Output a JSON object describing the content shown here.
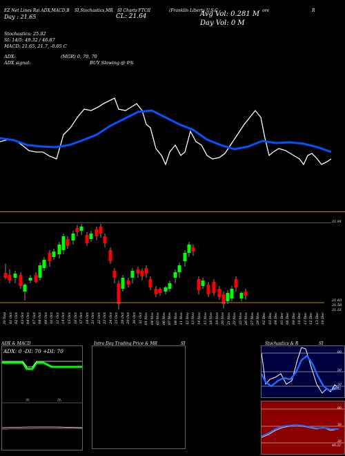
{
  "header": {
    "items": [
      "EZ Net Lines Rsi ADX,MACD,B",
      "SI,Stochastics,MR",
      "SI Charts FTCII",
      "(Franklin Liberty U.S.C",
      "ore",
      "R"
    ],
    "day_label": "Day : 21.65",
    "cl_label": "CL: 21.64",
    "avg_vol": "Avg Vol: 0.281 M",
    "day_vol": "Day Vol: 0   M"
  },
  "stats": {
    "stochastics": "Stochastics: 25.92",
    "si": "SI: 14/5: 49.32 / 46.87",
    "macd": "MACD: 21.65, 21.7, -0.05 C",
    "adx": "ADX:",
    "adx_signal": "ADX  signal:",
    "mgr": "(MGR) 0,  70,  70",
    "buy": "BUY Slowing @ 0%"
  },
  "price_axis": {
    "top": "21.91",
    "bottom_a": "21.63",
    "bottom_b": "21.56",
    "bottom_c": "21.51"
  },
  "dates": [
    "30 Sep",
    "01 Oct",
    "02 Oct",
    "03 Oct",
    "04 Oct",
    "07 Oct",
    "08 Oct",
    "09 Oct",
    "10 Oct",
    "11 Oct",
    "14 Oct",
    "15 Oct",
    "16 Oct",
    "17 Oct",
    "18 Oct",
    "21 Oct",
    "22 Oct",
    "23 Oct",
    "24 Oct",
    "25 Oct",
    "28 Oct",
    "29 Oct",
    "30 Oct",
    "31 Oct",
    "01 Nov",
    "04 Nov",
    "05 Nov",
    "06 Nov",
    "07 Nov",
    "08 Nov",
    "11 Nov",
    "12 Nov",
    "13 Nov",
    "14 Nov",
    "15 Nov",
    "18 Nov",
    "19 Nov",
    "20 Nov",
    "21 Nov",
    "22 Nov",
    "25 Nov",
    "26 Nov",
    "27 Nov",
    "29 Nov",
    "02 Dec",
    "03 Dec",
    "04 Dec",
    "05 Dec",
    "06 Dec",
    "09 Dec",
    "10 Dec",
    "11 Dec",
    "12 Dec",
    "13 Dec",
    "16 Dec"
  ],
  "panels": {
    "adx_title": "ADX  & MACD",
    "adx_text": "ADX: 0  -DI: 70  +DI: 70",
    "intra_title": "Intra  Day Trading Price  & MR",
    "intra_title_b": "SI",
    "stoch_title": "Stochastics & R",
    "stoch_title_b": "SI",
    "stoch_levels": [
      "80",
      "50",
      "20"
    ],
    "stoch_val": "25.92",
    "rsi_levels": [
      "80",
      "50",
      "20"
    ],
    "rsi_val": "49.32"
  },
  "colors": {
    "up": "#00ff00",
    "down": "#ff0000",
    "ema": "#0055ff",
    "price_line": "#ffffff",
    "rsi_bg": "#8b0000",
    "stoch_bg": "#00003f"
  }
}
